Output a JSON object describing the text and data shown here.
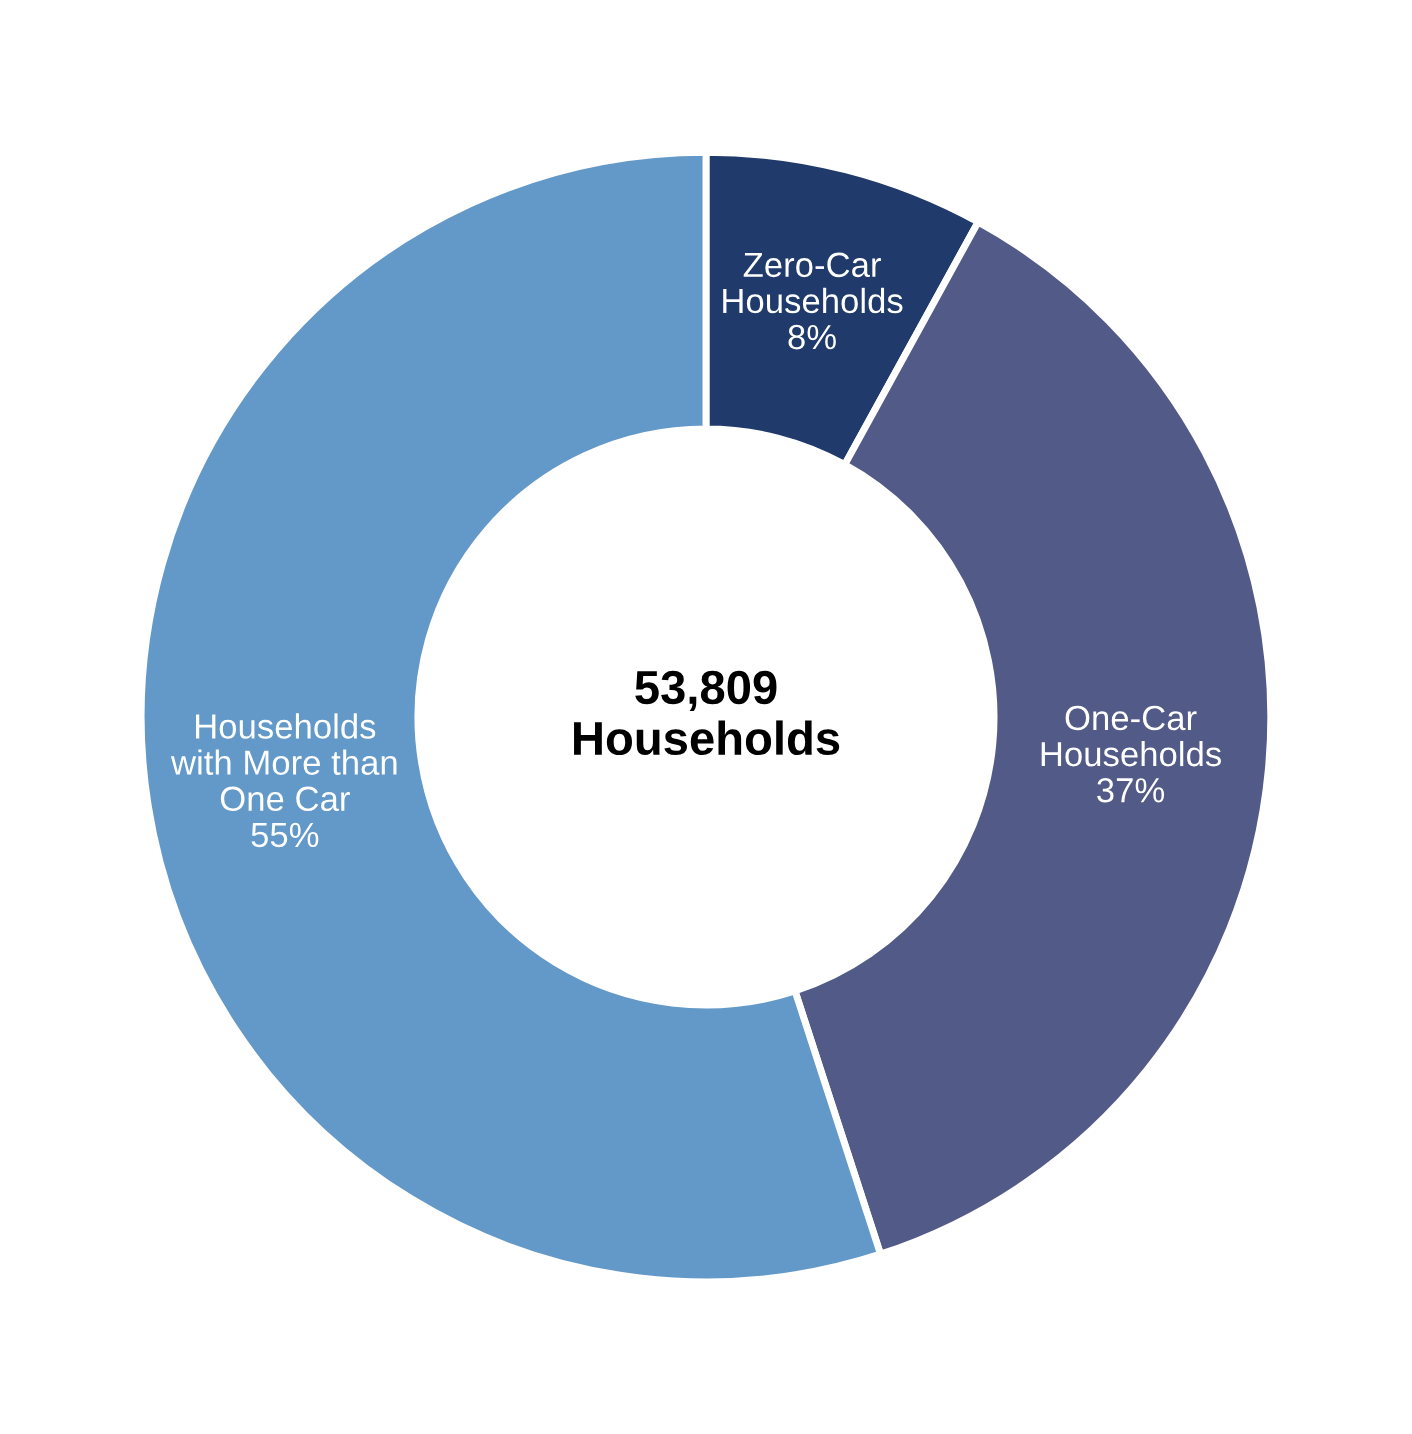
{
  "chart_data": {
    "type": "donut",
    "categories": [
      "Zero-Car\nHouseholds",
      "One-Car\nHouseholds",
      "Households\nwith More than\nOne Car"
    ],
    "values": [
      8,
      37,
      55
    ],
    "value_labels": [
      "8%",
      "37%",
      "55%"
    ],
    "colors": [
      "#1f3a6b",
      "#525a87",
      "#6399c8"
    ],
    "annotations": [
      "53,809\nHouseholds"
    ],
    "legend": false
  }
}
